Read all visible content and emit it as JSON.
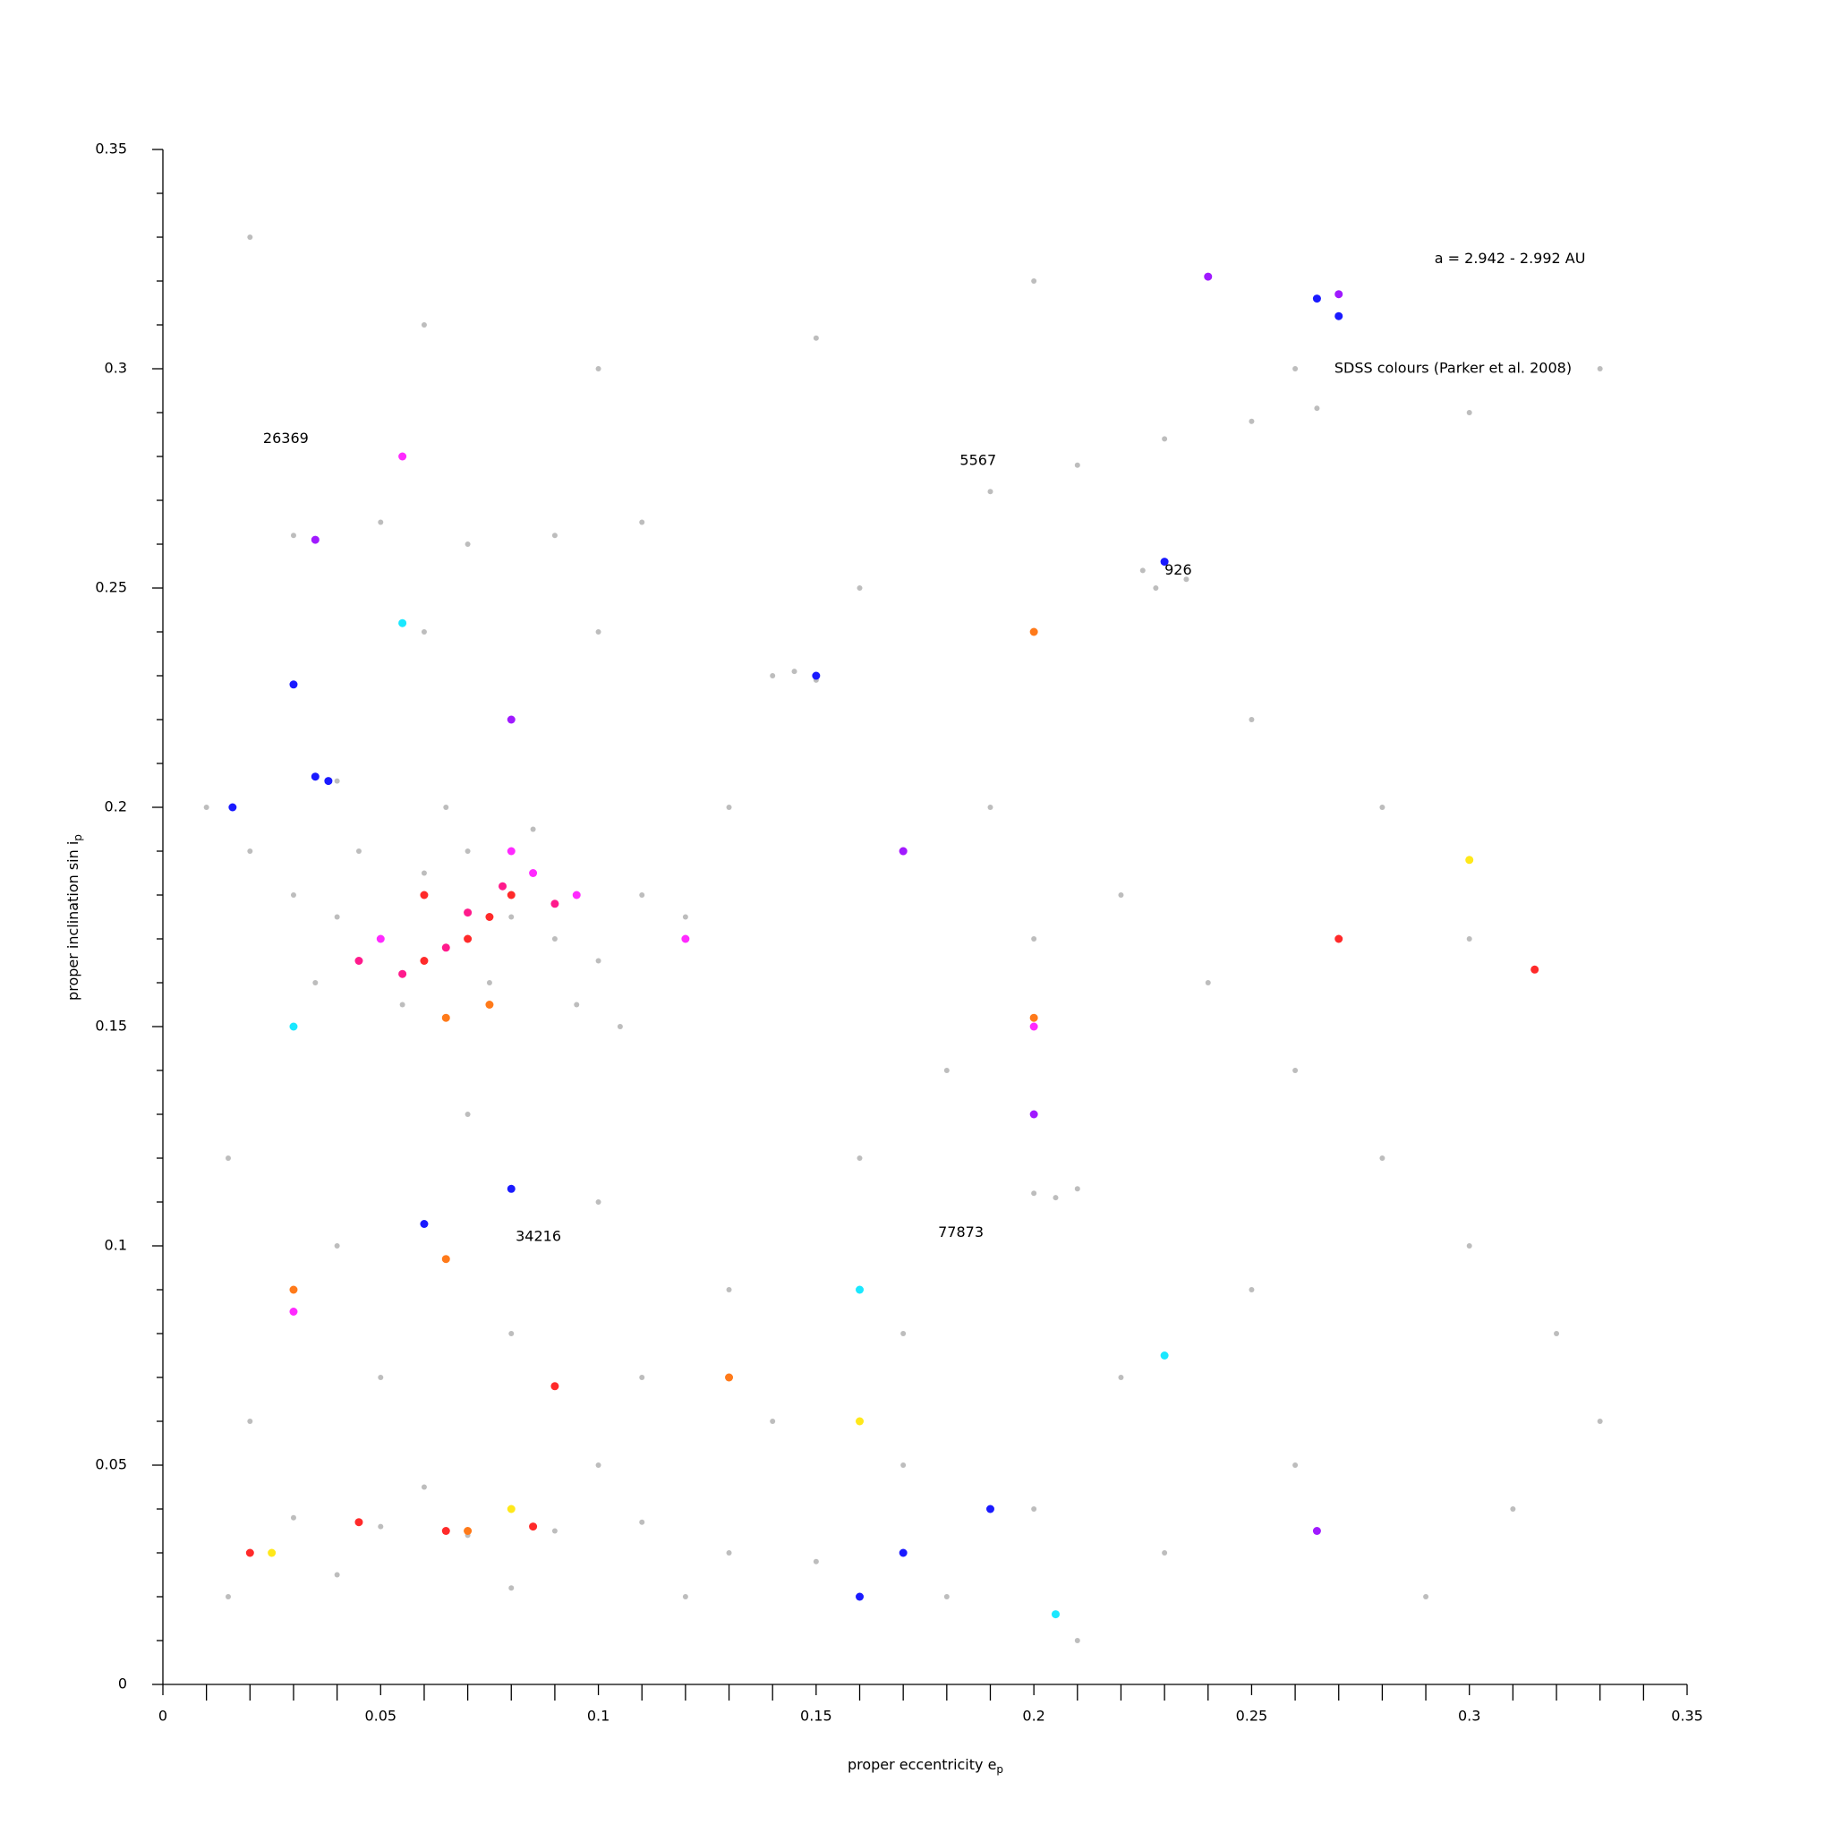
{
  "chart_data": {
    "type": "scatter",
    "xlabel": {
      "text": "proper eccentricity e",
      "sub": "p"
    },
    "ylabel": {
      "text": "proper inclination sin i",
      "sub": "p"
    },
    "annotations": [
      {
        "text": "a = 2.942 - 2.992 AU",
        "x": 0.292,
        "y": 0.325
      },
      {
        "text": "SDSS colours (Parker et al. 2008)",
        "x": 0.269,
        "y": 0.3
      },
      {
        "text": "26369",
        "x": 0.023,
        "y": 0.284
      },
      {
        "text": "5567",
        "x": 0.183,
        "y": 0.279
      },
      {
        "text": "926",
        "x": 0.23,
        "y": 0.254
      },
      {
        "text": "34216",
        "x": 0.081,
        "y": 0.102
      },
      {
        "text": "77873",
        "x": 0.178,
        "y": 0.103
      }
    ],
    "xlim": [
      0,
      0.35
    ],
    "ylim": [
      0,
      0.35
    ],
    "xticks": [
      {
        "value": 0,
        "label": "0"
      },
      0.05,
      0.1,
      0.15,
      0.2,
      0.25,
      0.3,
      0.35
    ],
    "yticks": [
      {
        "value": 0,
        "label": "0"
      },
      0.05,
      0.1,
      0.15,
      0.2,
      0.25,
      0.3,
      0.35
    ],
    "xminorticks": [
      0.01,
      0.02,
      0.03,
      0.04,
      0.06,
      0.07,
      0.08,
      0.09,
      0.11,
      0.12,
      0.13,
      0.14,
      0.16,
      0.17,
      0.18,
      0.19,
      0.21,
      0.22,
      0.23,
      0.24,
      0.26,
      0.27,
      0.28,
      0.29,
      0.31,
      0.32,
      0.33,
      0.34
    ],
    "yminorticks": [
      0.01,
      0.02,
      0.03,
      0.04,
      0.06,
      0.07,
      0.08,
      0.09,
      0.11,
      0.12,
      0.13,
      0.14,
      0.16,
      0.17,
      0.18,
      0.19,
      0.21,
      0.22,
      0.23,
      0.24,
      0.26,
      0.27,
      0.28,
      0.29,
      0.31,
      0.32,
      0.33,
      0.34
    ],
    "series": [
      {
        "color": "#bdbdbd",
        "x": [
          0.01,
          0.02,
          0.03,
          0.04,
          0.05,
          0.06,
          0.07,
          0.08,
          0.09,
          0.1,
          0.11,
          0.12,
          0.035,
          0.055,
          0.075,
          0.095,
          0.105,
          0.045,
          0.065,
          0.085,
          0.03,
          0.05,
          0.07,
          0.09,
          0.11,
          0.06,
          0.1,
          0.03,
          0.05,
          0.07,
          0.09,
          0.11,
          0.13,
          0.15,
          0.04,
          0.08,
          0.12,
          0.06,
          0.1,
          0.225,
          0.23,
          0.235,
          0.228,
          0.19,
          0.21,
          0.23,
          0.25,
          0.265,
          0.14,
          0.145,
          0.15,
          0.2,
          0.205,
          0.21,
          0.035,
          0.04,
          0.02,
          0.06,
          0.1,
          0.15,
          0.2,
          0.26,
          0.3,
          0.33,
          0.015,
          0.04,
          0.07,
          0.1,
          0.13,
          0.16,
          0.18,
          0.2,
          0.22,
          0.24,
          0.26,
          0.28,
          0.3,
          0.32,
          0.14,
          0.17,
          0.2,
          0.23,
          0.26,
          0.29,
          0.31,
          0.19,
          0.16,
          0.13,
          0.25,
          0.28,
          0.3,
          0.33,
          0.17,
          0.22,
          0.25,
          0.11,
          0.08,
          0.05,
          0.02,
          0.015,
          0.18,
          0.21
        ],
        "values": [
          0.2,
          0.19,
          0.18,
          0.175,
          0.17,
          0.185,
          0.19,
          0.175,
          0.17,
          0.165,
          0.18,
          0.175,
          0.16,
          0.155,
          0.16,
          0.155,
          0.15,
          0.19,
          0.2,
          0.195,
          0.262,
          0.265,
          0.26,
          0.262,
          0.265,
          0.24,
          0.24,
          0.038,
          0.036,
          0.034,
          0.035,
          0.037,
          0.03,
          0.028,
          0.025,
          0.022,
          0.02,
          0.045,
          0.05,
          0.254,
          0.256,
          0.252,
          0.25,
          0.272,
          0.278,
          0.284,
          0.288,
          0.291,
          0.23,
          0.231,
          0.229,
          0.112,
          0.111,
          0.113,
          0.207,
          0.206,
          0.33,
          0.31,
          0.3,
          0.307,
          0.32,
          0.3,
          0.29,
          0.3,
          0.12,
          0.1,
          0.13,
          0.11,
          0.09,
          0.12,
          0.14,
          0.17,
          0.18,
          0.16,
          0.14,
          0.12,
          0.1,
          0.08,
          0.06,
          0.05,
          0.04,
          0.03,
          0.05,
          0.02,
          0.04,
          0.2,
          0.25,
          0.2,
          0.22,
          0.2,
          0.17,
          0.06,
          0.08,
          0.07,
          0.09,
          0.07,
          0.08,
          0.07,
          0.06,
          0.02,
          0.02,
          0.01
        ]
      },
      {
        "color": "#ff2a2a",
        "x": [
          0.06,
          0.07,
          0.08,
          0.075,
          0.065,
          0.085,
          0.045,
          0.06,
          0.27,
          0.315,
          0.09,
          0.02
        ],
        "values": [
          0.165,
          0.17,
          0.18,
          0.175,
          0.035,
          0.036,
          0.037,
          0.18,
          0.17,
          0.163,
          0.068,
          0.03
        ]
      },
      {
        "color": "#ff2aff",
        "x": [
          0.08,
          0.085,
          0.05,
          0.055,
          0.12,
          0.03,
          0.17,
          0.095,
          0.2
        ],
        "values": [
          0.19,
          0.185,
          0.17,
          0.28,
          0.17,
          0.085,
          0.19,
          0.18,
          0.15
        ]
      },
      {
        "color": "#ff1a8c",
        "x": [
          0.078,
          0.065,
          0.045,
          0.09,
          0.07,
          0.055
        ],
        "values": [
          0.182,
          0.168,
          0.165,
          0.178,
          0.176,
          0.162
        ]
      },
      {
        "color": "#1a1aff",
        "x": [
          0.035,
          0.038,
          0.23,
          0.265,
          0.27,
          0.15,
          0.17,
          0.19,
          0.08,
          0.06,
          0.03,
          0.016,
          0.16
        ],
        "values": [
          0.207,
          0.206,
          0.256,
          0.316,
          0.312,
          0.23,
          0.03,
          0.04,
          0.113,
          0.105,
          0.228,
          0.2,
          0.02
        ]
      },
      {
        "color": "#ff7a1a",
        "x": [
          0.065,
          0.075,
          0.2,
          0.065,
          0.03,
          0.07,
          0.13,
          0.2
        ],
        "values": [
          0.152,
          0.155,
          0.24,
          0.097,
          0.09,
          0.035,
          0.07,
          0.152
        ]
      },
      {
        "color": "#ffe81a",
        "x": [
          0.025,
          0.3,
          0.08,
          0.16
        ],
        "values": [
          0.03,
          0.188,
          0.04,
          0.06
        ]
      },
      {
        "color": "#1ae8ff",
        "x": [
          0.055,
          0.205,
          0.23,
          0.16,
          0.03
        ],
        "values": [
          0.242,
          0.016,
          0.075,
          0.09,
          0.15
        ]
      },
      {
        "color": "#a01aff",
        "x": [
          0.27,
          0.24,
          0.035,
          0.08,
          0.2,
          0.17,
          0.265
        ],
        "values": [
          0.317,
          0.321,
          0.261,
          0.22,
          0.13,
          0.19,
          0.035
        ]
      }
    ]
  }
}
